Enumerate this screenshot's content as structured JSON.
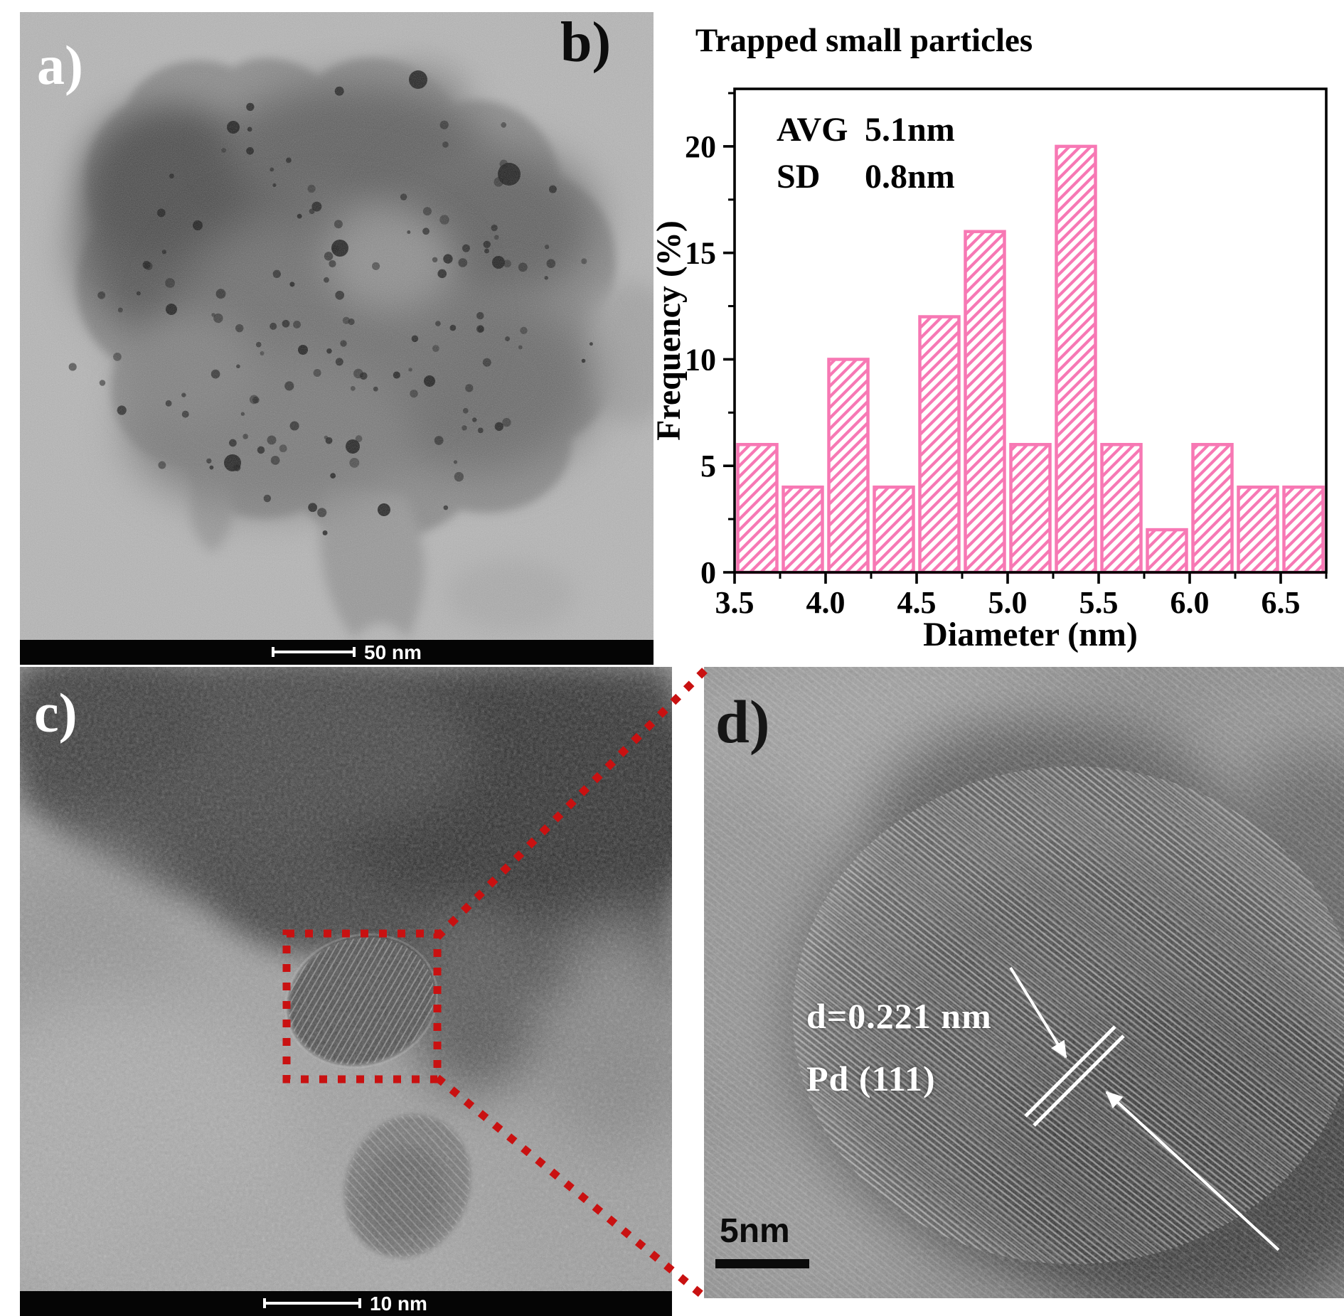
{
  "panels": {
    "a": {
      "label": "a)",
      "scale_bar": "50 nm"
    },
    "b": {
      "label": "b)"
    },
    "c": {
      "label": "c)",
      "scale_bar": "10 nm"
    },
    "d": {
      "label": "d)",
      "d_spacing": "d=0.221 nm",
      "plane": "Pd (111)",
      "scale_bar": "5nm"
    }
  },
  "chart_data": {
    "type": "bar",
    "title": "Trapped small particles",
    "xlabel": "Diameter (nm)",
    "ylabel": "Frequency (%)",
    "annotations": {
      "avg_label": "AVG",
      "avg_value": "5.1nm",
      "sd_label": "SD",
      "sd_value": "0.8nm"
    },
    "bin_start": 3.5,
    "bin_width": 0.25,
    "values": [
      6,
      4,
      10,
      4,
      12,
      16,
      6,
      20,
      6,
      2,
      6,
      4,
      4
    ],
    "bin_centers": [
      3.625,
      3.875,
      4.125,
      4.375,
      4.625,
      4.875,
      5.125,
      5.375,
      5.625,
      5.875,
      6.125,
      6.375,
      6.625
    ],
    "xticks": [
      "3.5",
      "4.0",
      "4.5",
      "5.0",
      "5.5",
      "6.0",
      "6.5"
    ],
    "yticks": [
      0,
      5,
      10,
      15,
      20
    ],
    "xlim": [
      3.5,
      6.75
    ],
    "ylim": [
      0,
      22.7
    ],
    "grid": false,
    "legend": false,
    "bar_color": "#f778b4",
    "hatch": "/"
  },
  "colors": {
    "histogram_pink": "#f778b4",
    "zoom_marker_red": "#c91111",
    "scalebar_band_black": "#050505"
  }
}
